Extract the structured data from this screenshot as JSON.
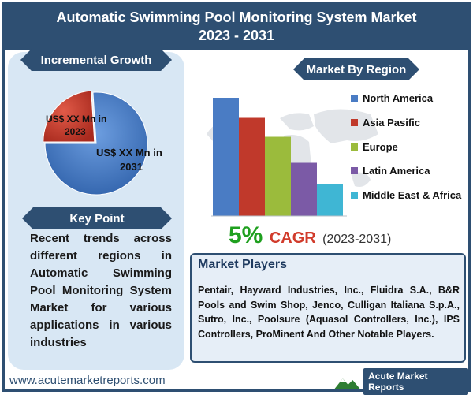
{
  "header": {
    "title_line1": "Automatic Swimming Pool Monitoring System Market",
    "title_line2": "2023 - 2031"
  },
  "incremental": {
    "title": "Incremental Growth",
    "label_2023": "US$ XX Mn in 2023",
    "label_2031": "US$ XX Mn in 2031",
    "colors": {
      "slice_2023": "#c0392b",
      "slice_2031": "#3a75c4"
    }
  },
  "key_point": {
    "title": "Key Point",
    "text": "Recent trends across different regions in Automatic Swimming Pool Monitoring System Market for various applications in various industries"
  },
  "region": {
    "title": "Market By Region"
  },
  "cagr": {
    "percent": "5%",
    "label": "CAGR",
    "years": "(2023-2031)"
  },
  "players": {
    "title": "Market Players",
    "text": "Pentair, Hayward Industries, Inc., Fluidra S.A., B&R Pools and Swim Shop, Jenco, Culligan Italiana S.p.A., Sutro, Inc., Poolsure (Aquasol Controllers, Inc.), IPS Controllers, ProMinent And Other Notable Players."
  },
  "footer": {
    "url": "www.acutemarketreports.com",
    "brand": "Acute Market Reports"
  },
  "chart_data": [
    {
      "type": "pie",
      "title": "Incremental Growth",
      "slices": [
        {
          "name": "US$ XX Mn in 2023",
          "value": 24,
          "color": "#c0392b"
        },
        {
          "name": "US$ XX Mn in 2031",
          "value": 76,
          "color": "#3a75c4"
        }
      ]
    },
    {
      "type": "bar",
      "title": "Market By Region",
      "categories": [
        "North America",
        "Asia Pasific",
        "Europe",
        "Latin America",
        "Middle East & Africa"
      ],
      "values": [
        100,
        83,
        67,
        45,
        27
      ],
      "colors": [
        "#4a7cc4",
        "#c0392b",
        "#9bbb3c",
        "#7b5aa6",
        "#3fb6d4"
      ],
      "ylim": [
        0,
        100
      ],
      "grid": false,
      "legend": "right"
    }
  ]
}
